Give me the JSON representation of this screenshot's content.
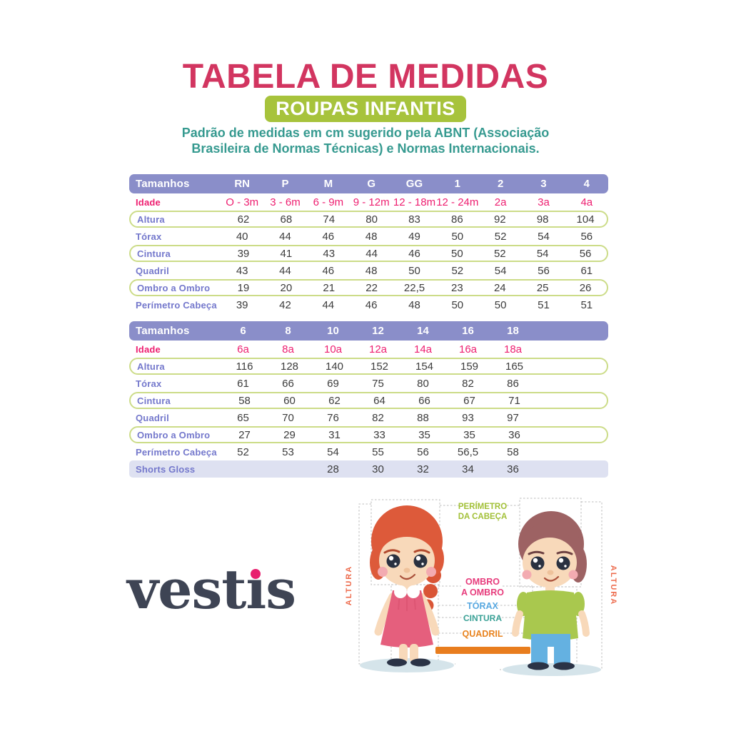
{
  "header": {
    "title": "TABELA DE MEDIDAS",
    "badge": "ROUPAS INFANTIS",
    "description_line1": "Padrão de medidas em cm sugerido pela ABNT (Associação",
    "description_line2": "Brasileira de Normas Técnicas) e Normas Internacionais."
  },
  "size_table_baby": {
    "header_label": "Tamanhos",
    "sizes": [
      "RN",
      "P",
      "M",
      "G",
      "GG",
      "1",
      "2",
      "3",
      "4"
    ],
    "rows": [
      {
        "label": "Idade",
        "style": "age",
        "values": [
          "O - 3m",
          "3 - 6m",
          "6 - 9m",
          "9 - 12m",
          "12 - 18m",
          "12 - 24m",
          "2a",
          "3a",
          "4a"
        ]
      },
      {
        "label": "Altura",
        "style": "bordered",
        "values": [
          "62",
          "68",
          "74",
          "80",
          "83",
          "86",
          "92",
          "98",
          "104"
        ]
      },
      {
        "label": "Tórax",
        "style": "plain",
        "values": [
          "40",
          "44",
          "46",
          "48",
          "49",
          "50",
          "52",
          "54",
          "56"
        ]
      },
      {
        "label": "Cintura",
        "style": "bordered",
        "values": [
          "39",
          "41",
          "43",
          "44",
          "46",
          "50",
          "52",
          "54",
          "56"
        ]
      },
      {
        "label": "Quadril",
        "style": "plain",
        "values": [
          "43",
          "44",
          "46",
          "48",
          "50",
          "52",
          "54",
          "56",
          "61"
        ]
      },
      {
        "label": "Ombro a Ombro",
        "style": "bordered",
        "values": [
          "19",
          "20",
          "21",
          "22",
          "22,5",
          "23",
          "24",
          "25",
          "26"
        ]
      },
      {
        "label": "Perímetro Cabeça",
        "style": "plain",
        "values": [
          "39",
          "42",
          "44",
          "46",
          "48",
          "50",
          "50",
          "51",
          "51"
        ]
      }
    ]
  },
  "size_table_kids": {
    "header_label": "Tamanhos",
    "sizes": [
      "6",
      "8",
      "10",
      "12",
      "14",
      "16",
      "18"
    ],
    "rows": [
      {
        "label": "Idade",
        "style": "age",
        "values": [
          "6a",
          "8a",
          "10a",
          "12a",
          "14a",
          "16a",
          "18a"
        ]
      },
      {
        "label": "Altura",
        "style": "bordered",
        "values": [
          "116",
          "128",
          "140",
          "152",
          "154",
          "159",
          "165"
        ]
      },
      {
        "label": "Tórax",
        "style": "plain",
        "values": [
          "61",
          "66",
          "69",
          "75",
          "80",
          "82",
          "86"
        ]
      },
      {
        "label": "Cintura",
        "style": "bordered",
        "values": [
          "58",
          "60",
          "62",
          "64",
          "66",
          "67",
          "71"
        ]
      },
      {
        "label": "Quadril",
        "style": "plain",
        "values": [
          "65",
          "70",
          "76",
          "82",
          "88",
          "93",
          "97"
        ]
      },
      {
        "label": "Ombro a Ombro",
        "style": "bordered",
        "values": [
          "27",
          "29",
          "31",
          "33",
          "35",
          "35",
          "36"
        ]
      },
      {
        "label": "Perímetro Cabeça",
        "style": "plain",
        "values": [
          "52",
          "53",
          "54",
          "55",
          "56",
          "56,5",
          "58"
        ]
      },
      {
        "label": "Shorts Gloss",
        "style": "highlight",
        "values": [
          "",
          "",
          "28",
          "30",
          "32",
          "34",
          "36"
        ]
      }
    ]
  },
  "brand": {
    "logo_text": "vestis",
    "logo_color": "#3e4454",
    "dot_color": "#e81f6e"
  },
  "illustration": {
    "head_line1": "PERÍMETRO",
    "head_line2": "DA CABEÇA",
    "shoulder_line1": "OMBRO",
    "shoulder_line2": "A OMBRO",
    "chest": "TÓRAX",
    "waist": "CINTURA",
    "hip": "QUADRIL",
    "height_left": "ALTURA",
    "height_right": "ALTURA"
  },
  "colors": {
    "title_pink": "#d23560",
    "badge_green": "#a7c33c",
    "description_teal": "#369a90",
    "table_header_purple": "#8a8ec9",
    "age_pink": "#ee1e70",
    "row_label_violet": "#7478cc",
    "row_border_green": "#ccdc88",
    "highlight_row_bg": "#dee1f1",
    "value_text": "#3c3c3c",
    "label_head_green": "#a2c037",
    "label_shoulder_pink": "#e73c7c",
    "label_chest_blue": "#58a8e0",
    "label_waist_teal": "#3aa196",
    "label_hip_orange": "#e8831f",
    "label_height_coral": "#ed6a4b",
    "hip_bar_orange": "#e87d1e"
  }
}
